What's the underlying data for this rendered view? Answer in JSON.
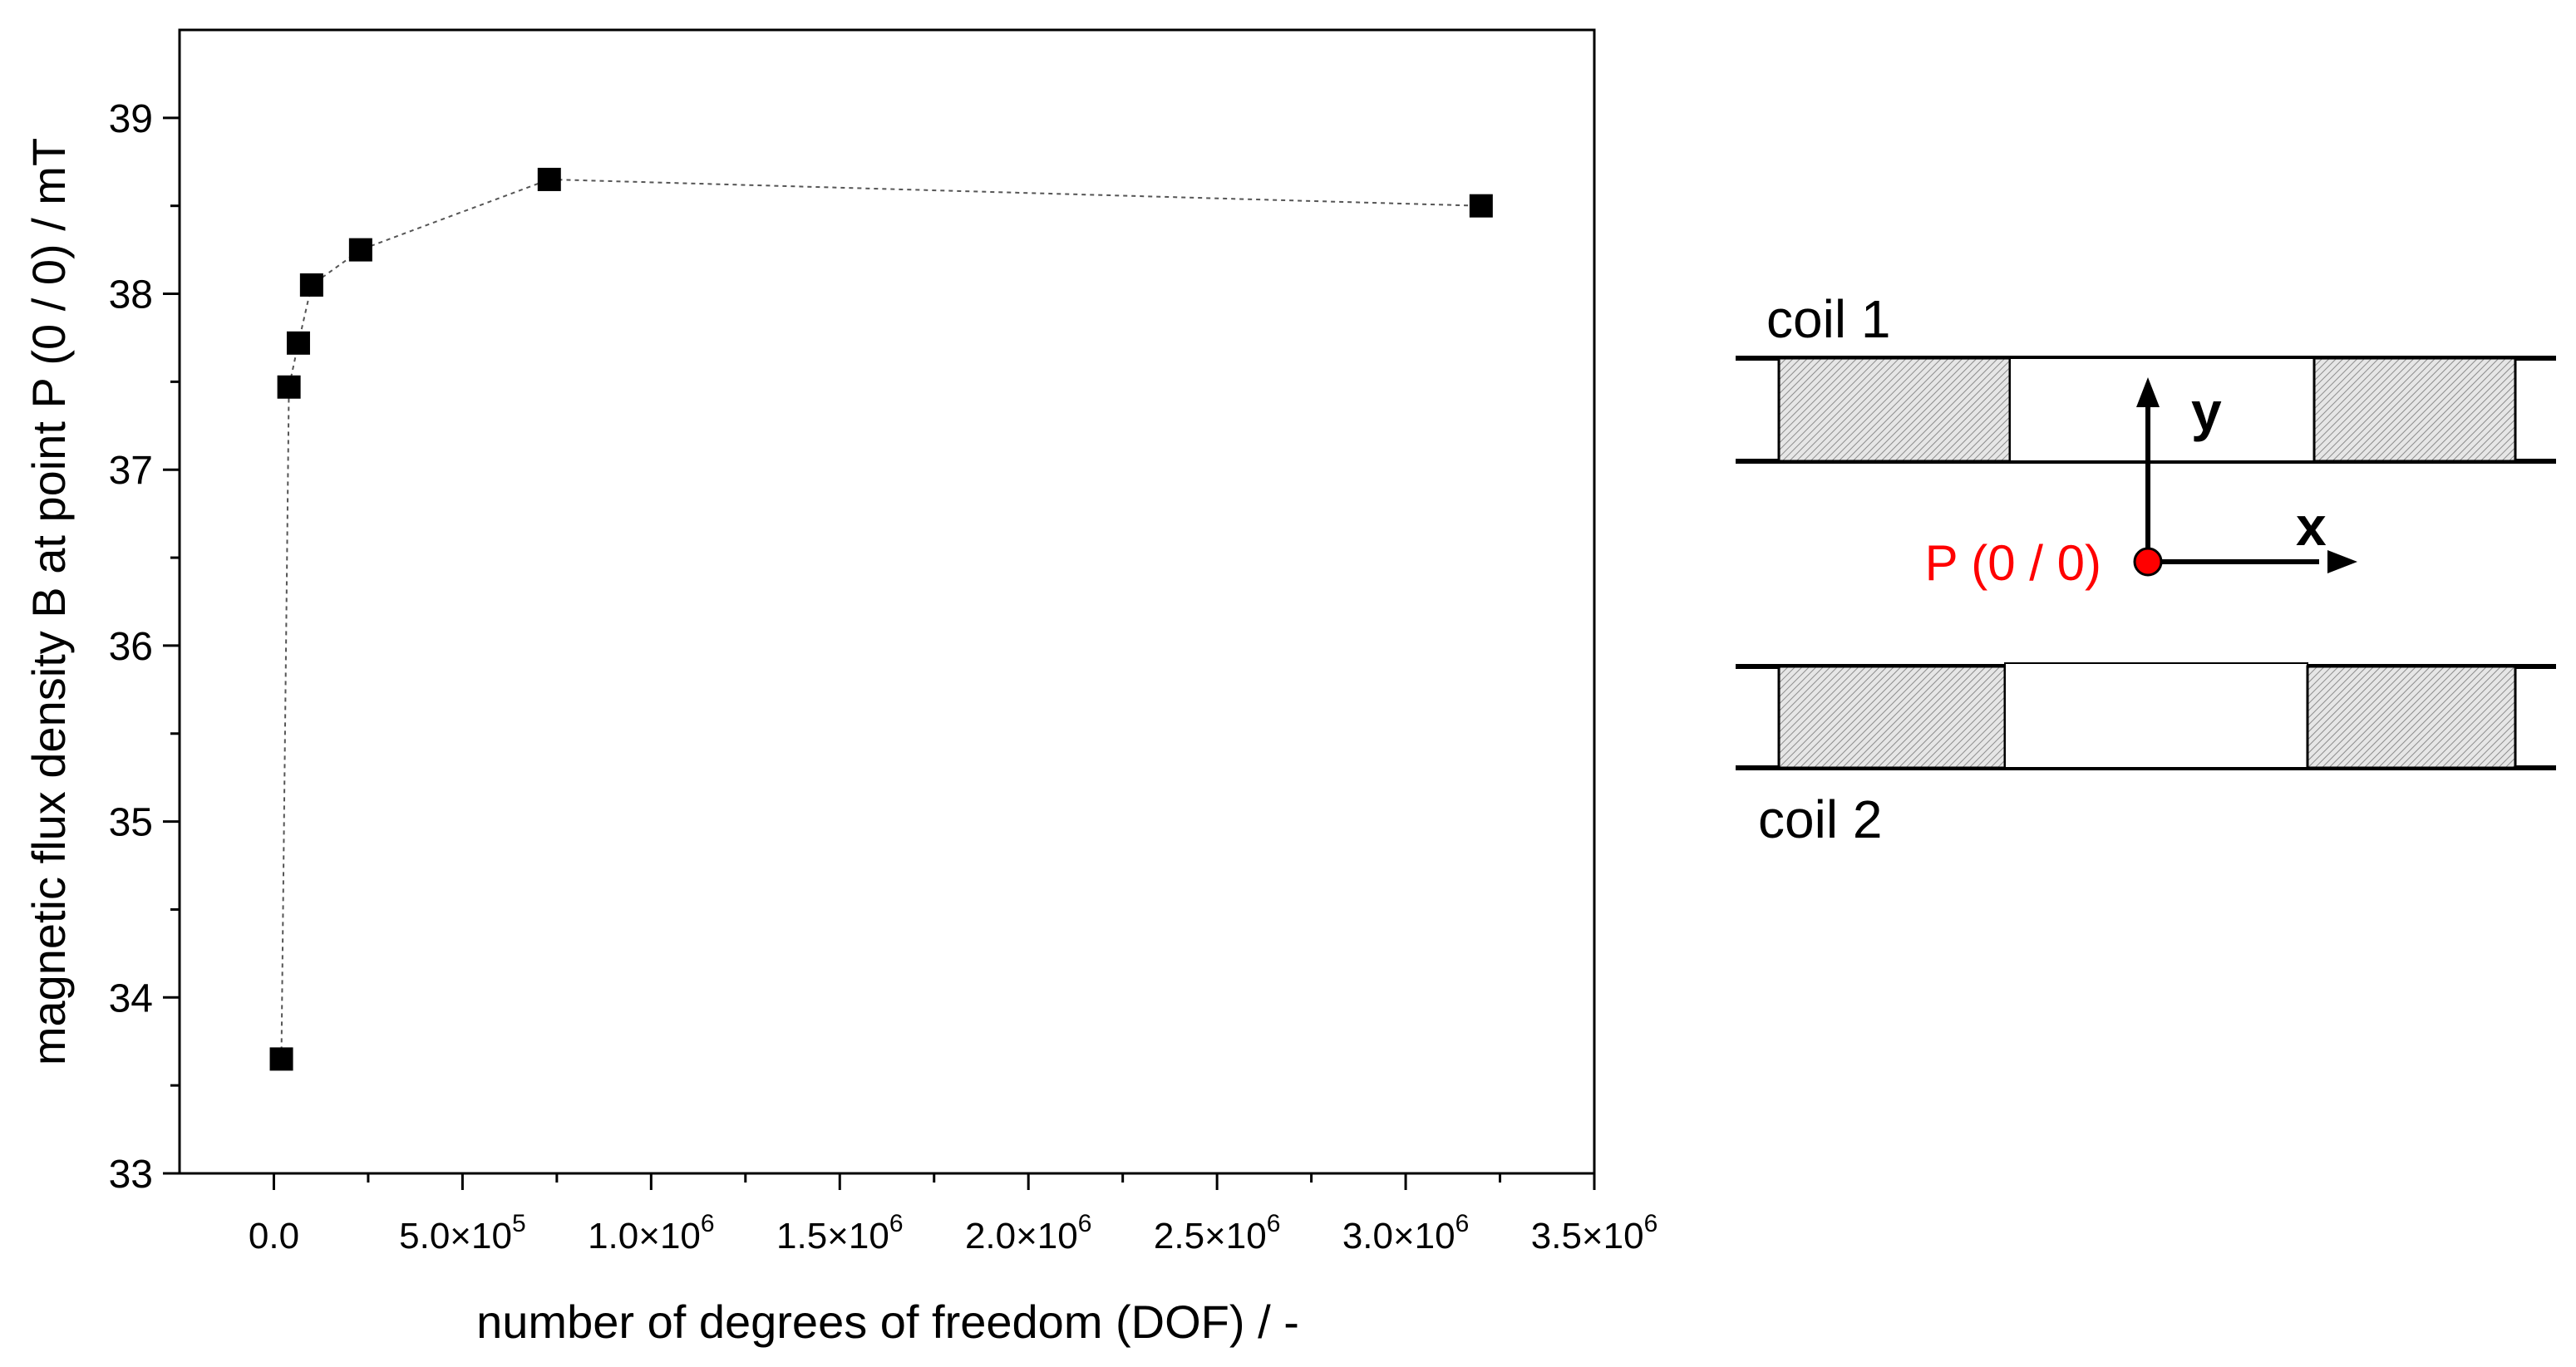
{
  "chart_data": {
    "type": "scatter",
    "title": "",
    "xlabel": "number of degrees of freedom (DOF) / -",
    "ylabel": "magnetic flux density B at point P (0 / 0) / mT",
    "xlim": [
      -250000,
      3500000
    ],
    "ylim": [
      33,
      39.5
    ],
    "grid": false,
    "x_ticks": [
      {
        "value": 0,
        "mant": "0.0",
        "exp": ""
      },
      {
        "value": 500000,
        "mant": "5.0×10",
        "exp": "5"
      },
      {
        "value": 1000000,
        "mant": "1.0×10",
        "exp": "6"
      },
      {
        "value": 1500000,
        "mant": "1.5×10",
        "exp": "6"
      },
      {
        "value": 2000000,
        "mant": "2.0×10",
        "exp": "6"
      },
      {
        "value": 2500000,
        "mant": "2.5×10",
        "exp": "6"
      },
      {
        "value": 3000000,
        "mant": "3.0×10",
        "exp": "6"
      },
      {
        "value": 3500000,
        "mant": "3.5×10",
        "exp": "6"
      }
    ],
    "y_ticks": [
      {
        "value": 33,
        "label": "33"
      },
      {
        "value": 34,
        "label": "34"
      },
      {
        "value": 35,
        "label": "35"
      },
      {
        "value": 36,
        "label": "36"
      },
      {
        "value": 37,
        "label": "37"
      },
      {
        "value": 38,
        "label": "38"
      },
      {
        "value": 39,
        "label": "39"
      }
    ],
    "series": [
      {
        "marker": "square",
        "line": "dotted",
        "color": "#000000",
        "points": [
          {
            "x": 20000,
            "y": 33.65
          },
          {
            "x": 40000,
            "y": 37.47
          },
          {
            "x": 65000,
            "y": 37.72
          },
          {
            "x": 100000,
            "y": 38.05
          },
          {
            "x": 230000,
            "y": 38.25
          },
          {
            "x": 730000,
            "y": 38.65
          },
          {
            "x": 3200000,
            "y": 38.5
          }
        ]
      }
    ]
  },
  "diagram": {
    "coil1_label": "coil 1",
    "coil2_label": "coil 2",
    "y_axis_label": "y",
    "x_axis_label": "x",
    "point_label": "P (0 / 0)",
    "point_color": "#ff0000",
    "hatch_color": "#9a9a9a"
  }
}
